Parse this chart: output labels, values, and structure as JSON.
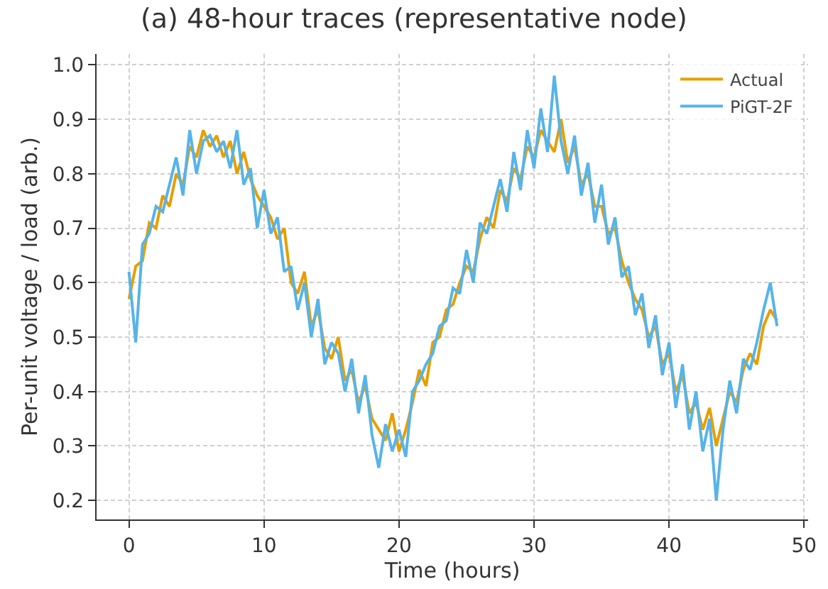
{
  "chart_data": {
    "type": "line",
    "title": "(a) 48-hour traces (representative node)",
    "xlabel": "Time (hours)",
    "ylabel": "Per-unit voltage / load (arb.)",
    "x": [
      0,
      0.5,
      1,
      1.5,
      2,
      2.5,
      3,
      3.5,
      4,
      4.5,
      5,
      5.5,
      6,
      6.5,
      7,
      7.5,
      8,
      8.5,
      9,
      9.5,
      10,
      10.5,
      11,
      11.5,
      12,
      12.5,
      13,
      13.5,
      14,
      14.5,
      15,
      15.5,
      16,
      16.5,
      17,
      17.5,
      18,
      18.5,
      19,
      19.5,
      20,
      20.5,
      21,
      21.5,
      22,
      22.5,
      23,
      23.5,
      24,
      24.5,
      25,
      25.5,
      26,
      26.5,
      27,
      27.5,
      28,
      28.5,
      29,
      29.5,
      30,
      30.5,
      31,
      31.5,
      32,
      32.5,
      33,
      33.5,
      34,
      34.5,
      35,
      35.5,
      36,
      36.5,
      37,
      37.5,
      38,
      38.5,
      39,
      39.5,
      40,
      40.5,
      41,
      41.5,
      42,
      42.5,
      43,
      43.5,
      44,
      44.5,
      45,
      45.5,
      46,
      46.5,
      47,
      47.5,
      48
    ],
    "series": [
      {
        "name": "Actual",
        "color": "#e69f00",
        "values": [
          0.57,
          0.63,
          0.64,
          0.71,
          0.7,
          0.76,
          0.74,
          0.8,
          0.78,
          0.85,
          0.83,
          0.88,
          0.85,
          0.87,
          0.83,
          0.86,
          0.8,
          0.84,
          0.79,
          0.76,
          0.74,
          0.72,
          0.68,
          0.7,
          0.6,
          0.58,
          0.62,
          0.52,
          0.55,
          0.48,
          0.46,
          0.5,
          0.42,
          0.44,
          0.38,
          0.41,
          0.35,
          0.33,
          0.31,
          0.36,
          0.29,
          0.33,
          0.38,
          0.44,
          0.41,
          0.49,
          0.5,
          0.55,
          0.56,
          0.6,
          0.63,
          0.62,
          0.68,
          0.72,
          0.7,
          0.77,
          0.75,
          0.81,
          0.79,
          0.85,
          0.83,
          0.88,
          0.86,
          0.84,
          0.9,
          0.82,
          0.85,
          0.78,
          0.8,
          0.74,
          0.74,
          0.69,
          0.7,
          0.64,
          0.6,
          0.57,
          0.55,
          0.5,
          0.52,
          0.45,
          0.47,
          0.4,
          0.43,
          0.36,
          0.38,
          0.33,
          0.37,
          0.3,
          0.35,
          0.4,
          0.38,
          0.44,
          0.47,
          0.45,
          0.52,
          0.55,
          0.53
        ]
      },
      {
        "name": "PiGT-2F",
        "color": "#56b4e9",
        "values": [
          0.62,
          0.49,
          0.67,
          0.69,
          0.74,
          0.73,
          0.78,
          0.83,
          0.76,
          0.88,
          0.8,
          0.86,
          0.87,
          0.84,
          0.86,
          0.81,
          0.88,
          0.78,
          0.81,
          0.7,
          0.77,
          0.69,
          0.72,
          0.62,
          0.63,
          0.55,
          0.6,
          0.5,
          0.57,
          0.45,
          0.49,
          0.47,
          0.4,
          0.46,
          0.36,
          0.43,
          0.32,
          0.26,
          0.34,
          0.29,
          0.33,
          0.28,
          0.4,
          0.42,
          0.45,
          0.47,
          0.52,
          0.53,
          0.59,
          0.58,
          0.66,
          0.6,
          0.71,
          0.69,
          0.74,
          0.79,
          0.73,
          0.84,
          0.77,
          0.88,
          0.81,
          0.92,
          0.84,
          0.98,
          0.86,
          0.8,
          0.87,
          0.76,
          0.82,
          0.71,
          0.78,
          0.67,
          0.72,
          0.61,
          0.63,
          0.54,
          0.58,
          0.48,
          0.54,
          0.43,
          0.49,
          0.37,
          0.45,
          0.33,
          0.4,
          0.29,
          0.35,
          0.2,
          0.33,
          0.42,
          0.36,
          0.46,
          0.44,
          0.49,
          0.55,
          0.6,
          0.52
        ]
      }
    ],
    "xlim": [
      -2.4,
      50.3
    ],
    "ylim": [
      0.165,
      1.02
    ],
    "xticks": [
      0,
      10,
      20,
      30,
      40,
      50
    ],
    "yticks": [
      0.2,
      0.3,
      0.4,
      0.5,
      0.6,
      0.7,
      0.8,
      0.9,
      {
        "value": 1,
        "label": "1.0"
      }
    ],
    "grid": true,
    "legend": "top right",
    "marker": "none",
    "line_style": "solid"
  }
}
